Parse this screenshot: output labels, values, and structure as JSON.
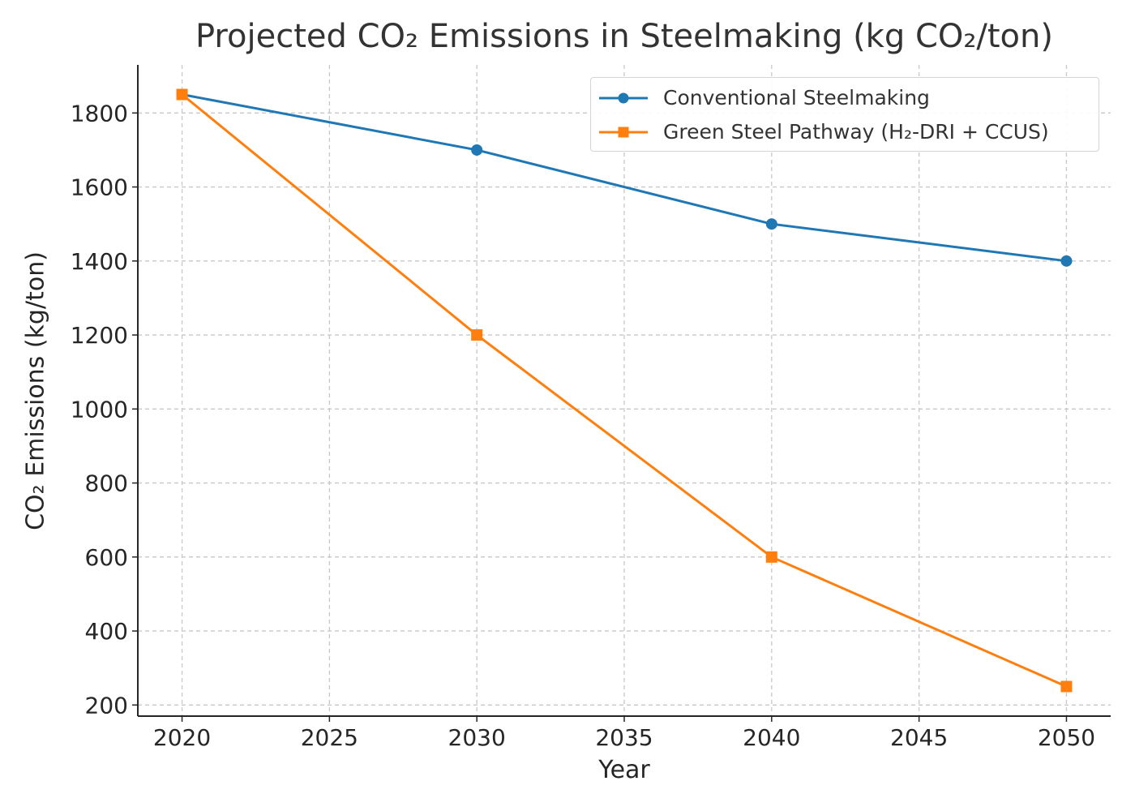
{
  "chart_data": {
    "type": "line",
    "title": "Projected CO₂ Emissions in Steelmaking (kg CO₂/ton)",
    "xlabel": "Year",
    "ylabel": "CO₂ Emissions (kg/ton)",
    "x": [
      2020,
      2030,
      2040,
      2050
    ],
    "xlim": [
      2018.5,
      2051.5
    ],
    "ylim": [
      170,
      1930
    ],
    "xticks": [
      2020,
      2025,
      2030,
      2035,
      2040,
      2045,
      2050
    ],
    "yticks": [
      200,
      400,
      600,
      800,
      1000,
      1200,
      1400,
      1600,
      1800
    ],
    "grid": true,
    "legend_position": "top-right",
    "series": [
      {
        "name": "Conventional Steelmaking",
        "values": [
          1850,
          1700,
          1500,
          1400
        ],
        "color": "#1f77b4",
        "marker": "circle"
      },
      {
        "name": "Green Steel Pathway (H₂-DRI + CCUS)",
        "values": [
          1850,
          1200,
          600,
          250
        ],
        "color": "#ff7f0e",
        "marker": "square"
      }
    ]
  }
}
